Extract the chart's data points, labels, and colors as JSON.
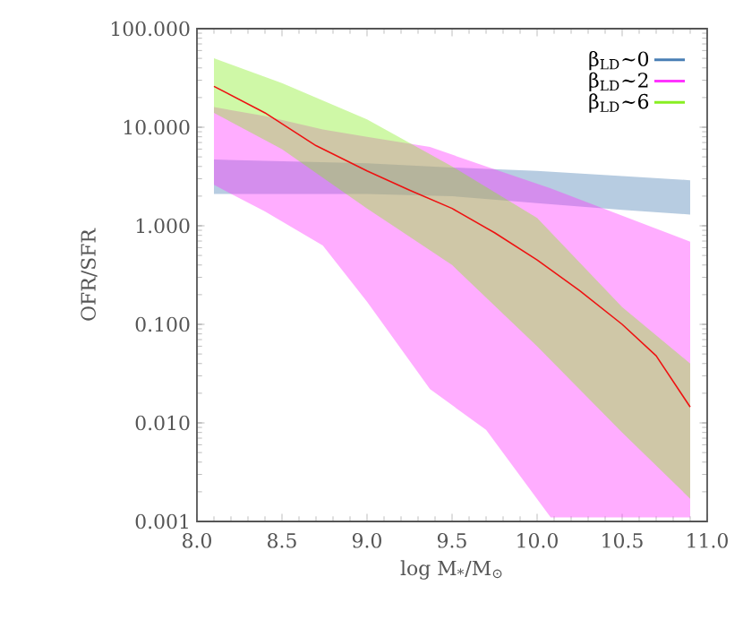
{
  "chart_data": {
    "type": "line",
    "xlabel": "log M$_{*}$/M$_{⊙}$",
    "ylabel": "OFR/SFR",
    "log": "y",
    "xlim": [
      8.0,
      11.0
    ],
    "ylim": [
      0.001,
      100
    ],
    "xticks": [
      {
        "value": 8,
        "label": "8.0"
      },
      {
        "value": 8.5,
        "label": "8.5"
      },
      {
        "value": 9,
        "label": "9.0"
      },
      {
        "value": 9.5,
        "label": "9.5"
      },
      {
        "value": 10,
        "label": "10.0"
      },
      {
        "value": 10.5,
        "label": "10.5"
      },
      {
        "value": 11,
        "label": "11.0"
      }
    ],
    "yticks": [
      {
        "value": 0.001,
        "label": "0.001"
      },
      {
        "value": 0.01,
        "label": "0.010"
      },
      {
        "value": 0.1,
        "label": "0.100"
      },
      {
        "value": 1,
        "label": "1.000"
      },
      {
        "value": 10,
        "label": "10.000"
      },
      {
        "value": 100,
        "label": "100.000"
      }
    ],
    "grid": false,
    "legend": "top right",
    "series": [
      {
        "name": "β$_{LD}$~0",
        "color": "#4a7fb5",
        "x": [
          8.1,
          9.0,
          9.5,
          10.0,
          10.5,
          10.9
        ],
        "values": [
          null,
          null,
          null,
          null,
          null,
          null
        ],
        "lower": [
          2.1,
          2.1,
          2.0,
          1.7,
          1.45,
          1.3
        ],
        "upper": [
          4.7,
          4.3,
          3.9,
          3.6,
          3.2,
          2.9
        ]
      },
      {
        "name": "β$_{LD}$~2",
        "color": "#ff33ff",
        "x": [
          8.1,
          8.4,
          8.74,
          9.0,
          9.37,
          9.7,
          10.08,
          10.9
        ],
        "values": [
          null,
          null,
          null,
          null,
          null,
          null,
          null,
          null
        ],
        "lower": [
          2.6,
          1.4,
          0.63,
          0.17,
          0.022,
          0.0085,
          0.0011,
          0.0011
        ],
        "upper": [
          16,
          13,
          9.5,
          8,
          6.3,
          4,
          2.4,
          0.69
        ]
      },
      {
        "name": "β$_{LD}$~6",
        "color": "#88ee22",
        "x": [
          8.1,
          8.5,
          9.0,
          9.5,
          10.0,
          10.5,
          10.9
        ],
        "values": [
          null,
          null,
          null,
          null,
          null,
          null,
          null
        ],
        "lower": [
          14,
          6,
          1.5,
          0.4,
          0.06,
          0.008,
          0.0017
        ],
        "upper": [
          50,
          28,
          12,
          4,
          1.2,
          0.15,
          0.04
        ]
      },
      {
        "color": "#ee1111",
        "x": [
          8.1,
          8.4,
          8.7,
          9.0,
          9.25,
          9.5,
          9.75,
          10.0,
          10.25,
          10.5,
          10.7,
          10.9
        ],
        "values": [
          26,
          14,
          6.5,
          3.6,
          2.3,
          1.5,
          0.85,
          0.45,
          0.22,
          0.1,
          0.048,
          0.0145
        ]
      }
    ]
  }
}
